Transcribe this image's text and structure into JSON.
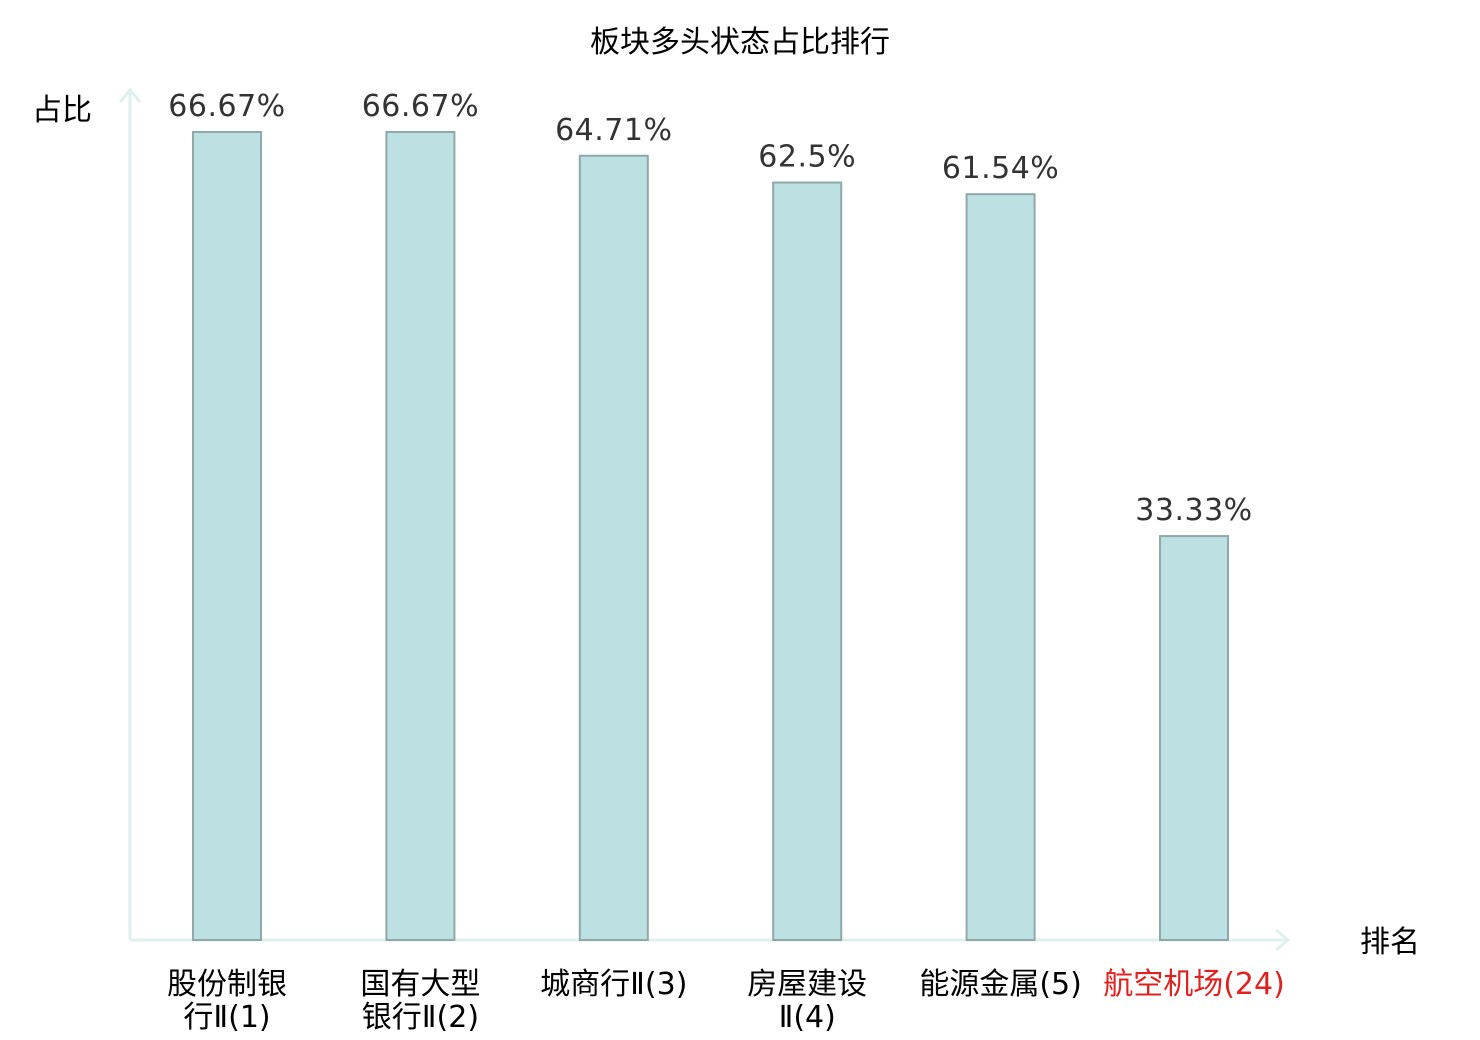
{
  "chart_data": {
    "type": "bar",
    "title": "板块多头状态占比排行",
    "ylabel": "占比",
    "xlabel": "排名",
    "categories": [
      [
        "股份制银",
        "行Ⅱ(1)"
      ],
      [
        "国有大型",
        "银行Ⅱ(2)"
      ],
      [
        "城商行Ⅱ(3)"
      ],
      [
        "房屋建设",
        "Ⅱ(4)"
      ],
      [
        "能源金属(5)"
      ],
      [
        "航空机场(24)"
      ]
    ],
    "values": [
      66.67,
      66.67,
      64.71,
      62.5,
      61.54,
      33.33
    ],
    "value_labels": [
      "66.67%",
      "66.67%",
      "64.71%",
      "62.5%",
      "61.54%",
      "33.33%"
    ],
    "highlight_index": 5,
    "ylim": [
      0,
      66.67
    ],
    "grid": false,
    "colors": {
      "bar_fill": "#bde0e3",
      "bar_stroke": "#8fa9ab",
      "axis": "#dff1ee",
      "highlight_text": "#e0211f",
      "value_text": "#333333"
    }
  }
}
